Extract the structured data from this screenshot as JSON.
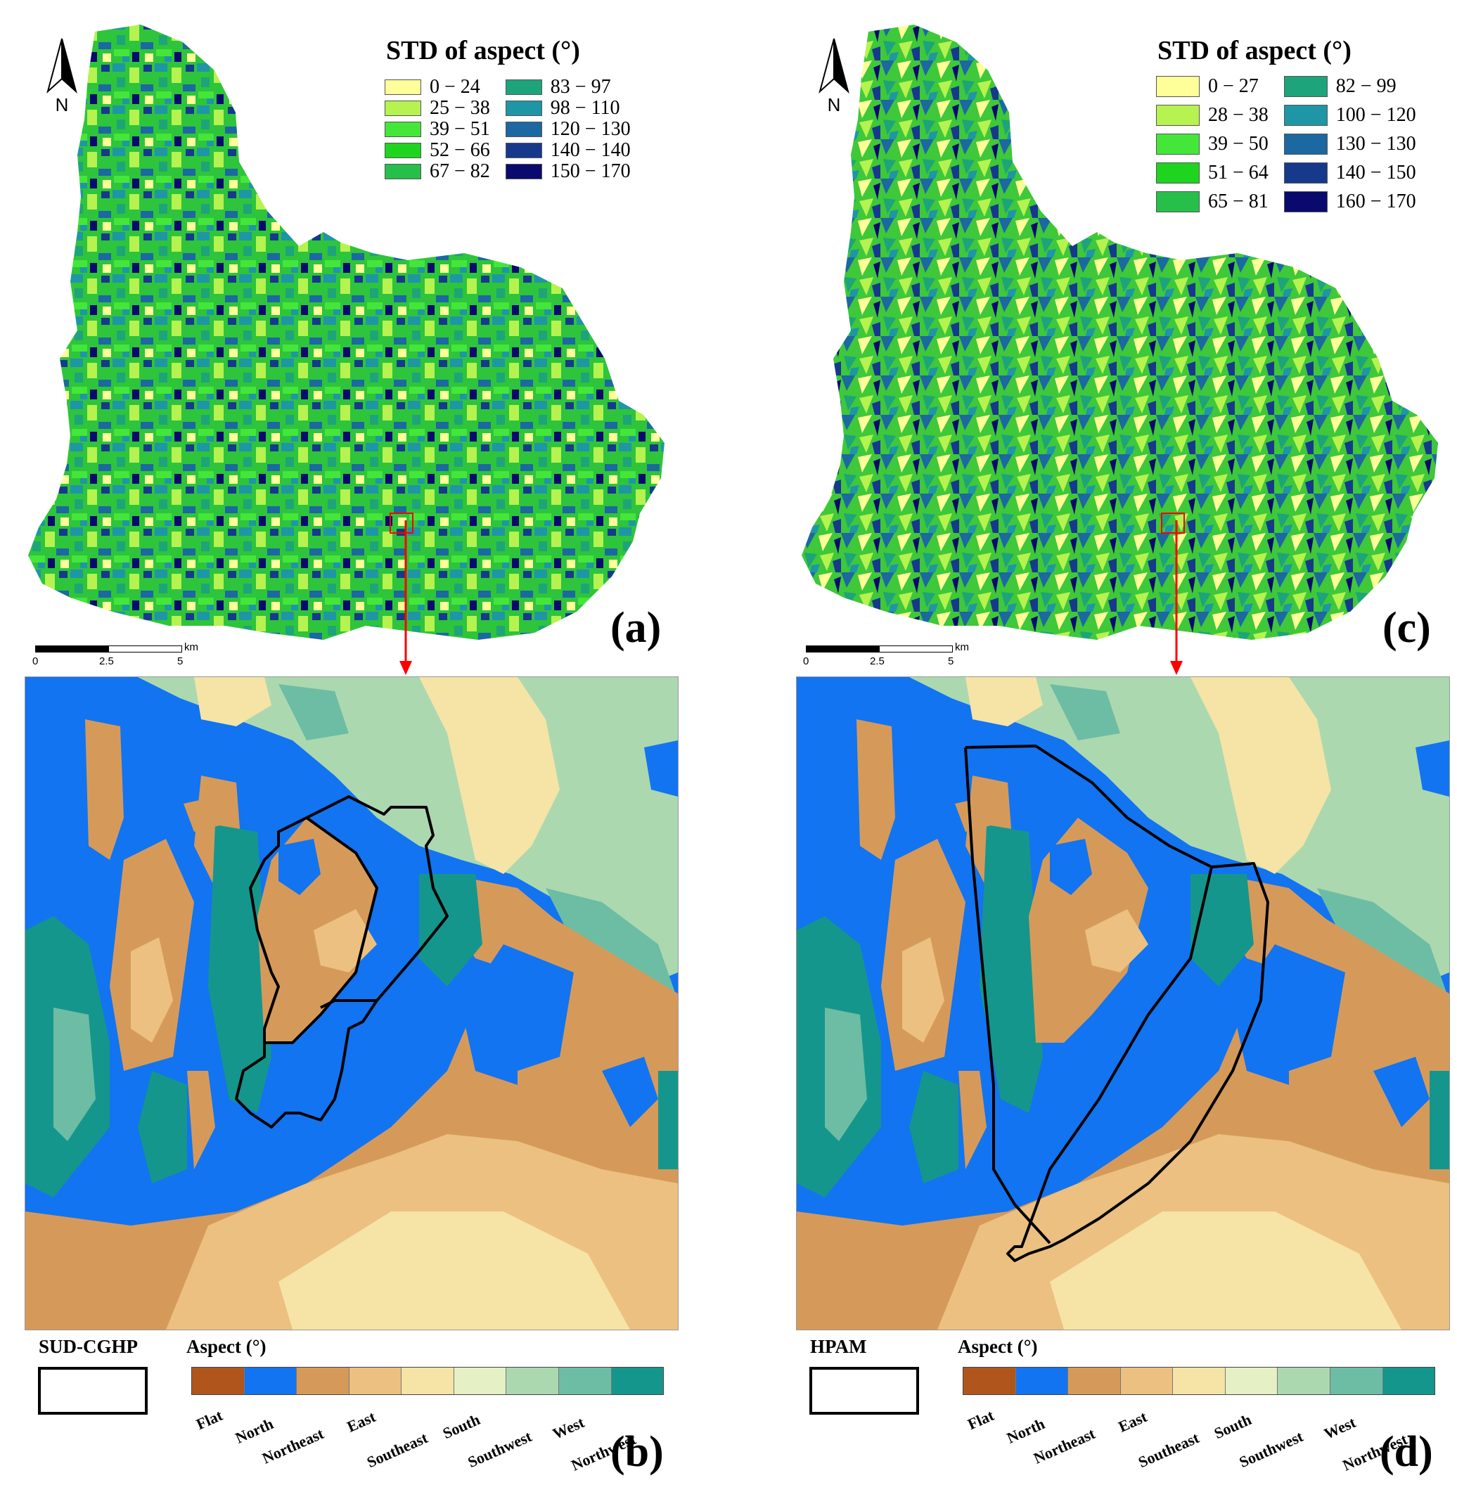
{
  "panels": {
    "a": {
      "letter": "(a)",
      "legend_title": "STD of aspect (°)",
      "legend": [
        {
          "label": "0 − 24",
          "color": "#ffff99"
        },
        {
          "label": "25 − 38",
          "color": "#b6f250"
        },
        {
          "label": "39 − 51",
          "color": "#44e63a"
        },
        {
          "label": "52 − 66",
          "color": "#1ed41e"
        },
        {
          "label": "67 − 82",
          "color": "#26bf4a"
        },
        {
          "label": "83 − 97",
          "color": "#1ea47a"
        },
        {
          "label": "98 − 110",
          "color": "#1e96a6"
        },
        {
          "label": "120 − 130",
          "color": "#1c68a0"
        },
        {
          "label": "140 − 140",
          "color": "#17398c"
        },
        {
          "label": "150 − 170",
          "color": "#0a0a6e"
        }
      ]
    },
    "c": {
      "letter": "(c)",
      "legend_title": "STD of aspect (°)",
      "legend": [
        {
          "label": "0 − 27",
          "color": "#ffff99"
        },
        {
          "label": "28 − 38",
          "color": "#b6f250"
        },
        {
          "label": "39 − 50",
          "color": "#44e63a"
        },
        {
          "label": "51 − 64",
          "color": "#1ed41e"
        },
        {
          "label": "65 − 81",
          "color": "#26bf4a"
        },
        {
          "label": "82 − 99",
          "color": "#1ea47a"
        },
        {
          "label": "100 − 120",
          "color": "#1e96a6"
        },
        {
          "label": "130 − 130",
          "color": "#1c68a0"
        },
        {
          "label": "140 − 150",
          "color": "#17398c"
        },
        {
          "label": "160 − 170",
          "color": "#0a0a6e"
        }
      ]
    },
    "b": {
      "letter": "(b)",
      "method": "SUD-CGHP"
    },
    "d": {
      "letter": "(d)",
      "method": "HPAM"
    }
  },
  "north_label": "N",
  "scalebar": {
    "ticks": [
      "0",
      "2.5",
      "5"
    ],
    "unit": "km"
  },
  "aspect_legend": {
    "title": "Aspect (°)",
    "classes": [
      {
        "label": "Flat",
        "color": "#b0561c"
      },
      {
        "label": "North",
        "color": "#1274f0"
      },
      {
        "label": "Northeast",
        "color": "#d59a5a"
      },
      {
        "label": "East",
        "color": "#ecc080"
      },
      {
        "label": "Southeast",
        "color": "#f5e4a6"
      },
      {
        "label": "South",
        "color": "#e5f0c4"
      },
      {
        "label": "Southwest",
        "color": "#acd8b0"
      },
      {
        "label": "West",
        "color": "#6cbda4"
      },
      {
        "label": "Northwest",
        "color": "#15968c"
      }
    ]
  }
}
